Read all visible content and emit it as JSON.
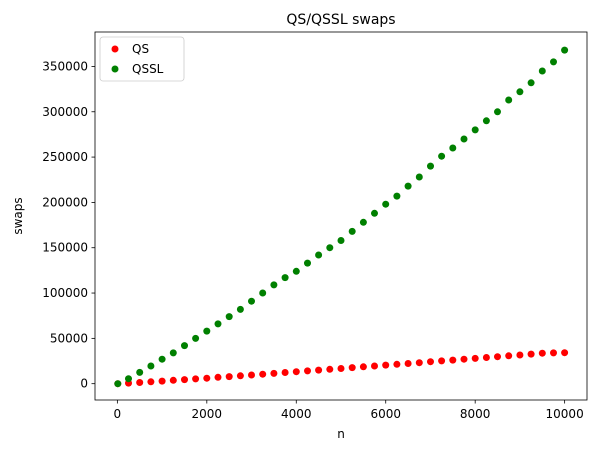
{
  "chart_data": {
    "type": "scatter",
    "title": "QS/QSSL swaps",
    "xlabel": "n",
    "ylabel": "swaps",
    "xlim": [
      -500,
      10500
    ],
    "ylim": [
      -18000,
      388000
    ],
    "xticks": [
      0,
      2000,
      4000,
      6000,
      8000,
      10000
    ],
    "yticks": [
      0,
      50000,
      100000,
      150000,
      200000,
      250000,
      300000,
      350000
    ],
    "grid": false,
    "legend_position": "top-left",
    "series": [
      {
        "name": "QS",
        "color": "#ff0000",
        "x": [
          10,
          250,
          500,
          750,
          1000,
          1250,
          1500,
          1750,
          2000,
          2250,
          2500,
          2750,
          3000,
          3250,
          3500,
          3750,
          4000,
          4250,
          4500,
          4750,
          5000,
          5250,
          5500,
          5750,
          6000,
          6250,
          6500,
          6750,
          7000,
          7250,
          7500,
          7750,
          8000,
          8250,
          8500,
          8750,
          9000,
          9250,
          9500,
          9750,
          10000
        ],
        "y": [
          0,
          600,
          1300,
          2100,
          2900,
          3700,
          4500,
          5300,
          6100,
          7000,
          7800,
          8700,
          9600,
          10500,
          11400,
          12300,
          13200,
          14100,
          15000,
          15900,
          16800,
          17700,
          18600,
          19500,
          20500,
          21400,
          22300,
          23200,
          24200,
          25100,
          26000,
          27000,
          27900,
          28900,
          29800,
          30800,
          31700,
          32600,
          33600,
          34000,
          34200
        ]
      },
      {
        "name": "QSSL",
        "color": "#008000",
        "x": [
          10,
          250,
          500,
          750,
          1000,
          1250,
          1500,
          1750,
          2000,
          2250,
          2500,
          2750,
          3000,
          3250,
          3500,
          3750,
          4000,
          4250,
          4500,
          4750,
          5000,
          5250,
          5500,
          5750,
          6000,
          6250,
          6500,
          6750,
          7000,
          7250,
          7500,
          7750,
          8000,
          8250,
          8500,
          8750,
          9000,
          9250,
          9500,
          9750,
          10000
        ],
        "y": [
          0,
          5500,
          12500,
          19500,
          27000,
          34000,
          42000,
          50000,
          58000,
          66000,
          74000,
          82000,
          91000,
          100000,
          109000,
          117000,
          124000,
          133000,
          142000,
          150000,
          158000,
          168000,
          178000,
          188000,
          198000,
          207000,
          218000,
          228000,
          240000,
          251000,
          260000,
          270000,
          280000,
          290000,
          300000,
          313000,
          322000,
          332000,
          345000,
          355000,
          368000
        ]
      }
    ]
  }
}
